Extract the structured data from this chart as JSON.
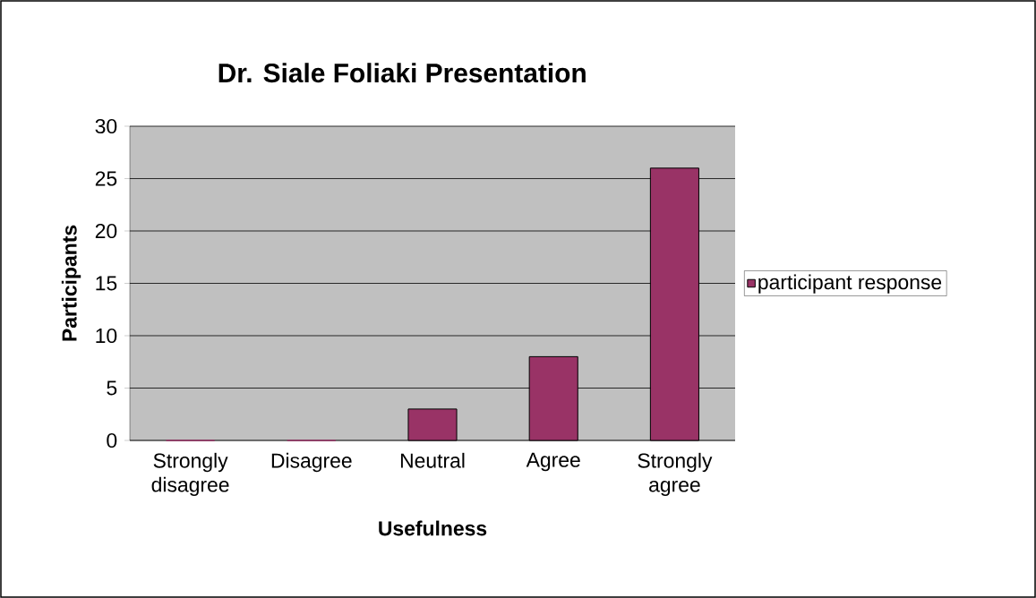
{
  "chart_data": {
    "type": "bar",
    "title": "Dr. Siale Foliaki Presentation",
    "xlabel": "Usefulness",
    "ylabel": "Participants",
    "categories": [
      "Strongly disagree",
      "Disagree",
      "Neutral",
      "Agree",
      "Strongly agree"
    ],
    "series": [
      {
        "name": "participant response",
        "color": "#993366",
        "values": [
          0,
          0,
          3,
          8,
          26
        ]
      }
    ],
    "ylim": [
      0,
      30
    ],
    "yticks": [
      0,
      5,
      10,
      15,
      20,
      25,
      30
    ],
    "grid": "y",
    "legend": "right"
  }
}
